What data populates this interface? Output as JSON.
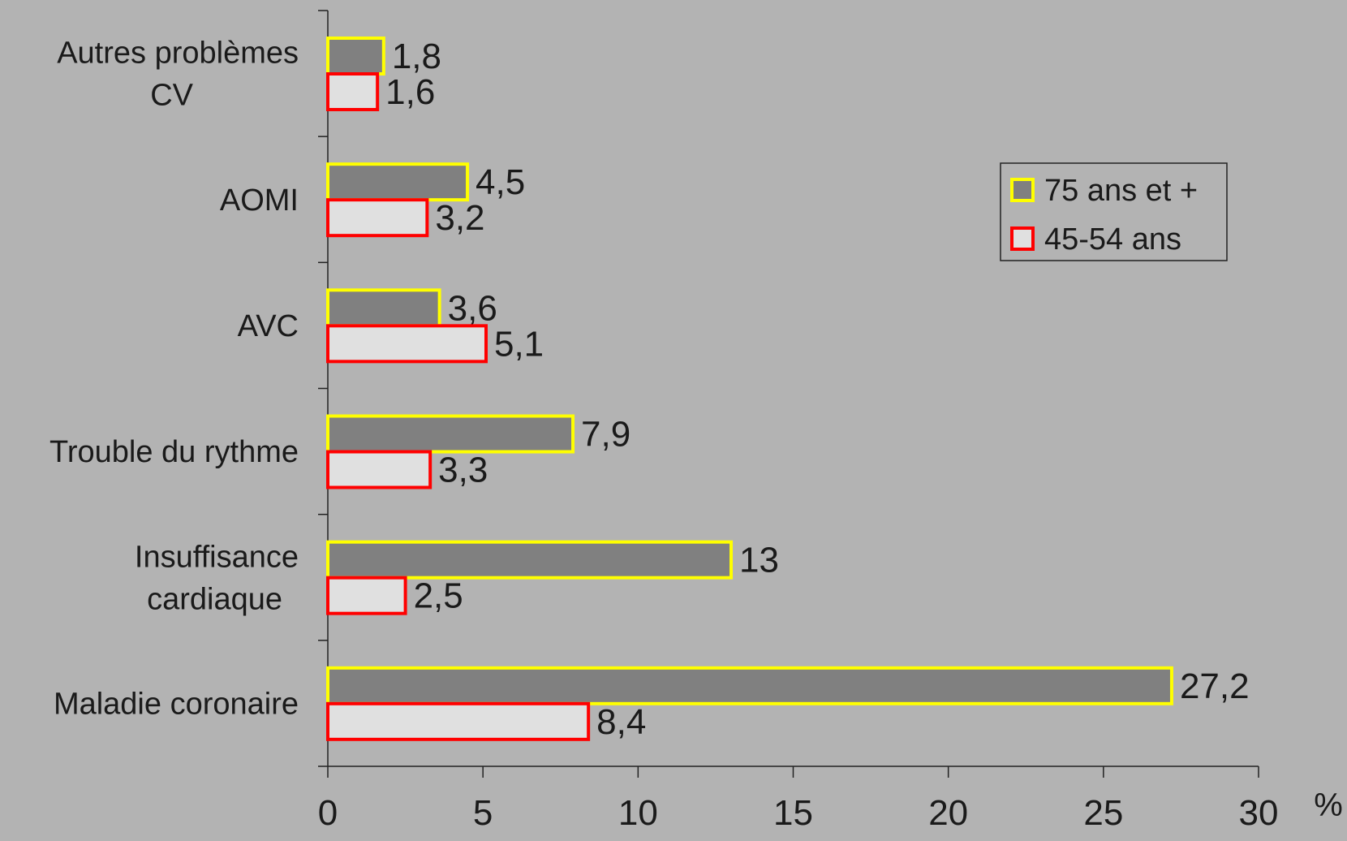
{
  "chart_data": {
    "type": "barh",
    "categories": [
      "Autres problèmes\nCV",
      "AOMI",
      "AVC",
      "Trouble du rythme",
      "Insuffisance\ncardiaque",
      "Maladie coronaire"
    ],
    "series": [
      {
        "name": "75 ans et +",
        "color": "#808080",
        "edgecolor": "#ffff00",
        "values": [
          1.8,
          4.5,
          3.6,
          7.9,
          13,
          27.2
        ],
        "value_labels": [
          "1,8",
          "4,5",
          "3,6",
          "7,9",
          "13",
          "27,2"
        ]
      },
      {
        "name": "45-54 ans",
        "color": "#e0e0e0",
        "edgecolor": "#ff0000",
        "values": [
          1.6,
          3.2,
          5.1,
          3.3,
          2.5,
          8.4
        ],
        "value_labels": [
          "1,6",
          "3,2",
          "5,1",
          "3,3",
          "2,5",
          "8,4"
        ]
      }
    ],
    "xlabel": "%",
    "xlim": [
      0,
      30
    ],
    "xticks": [
      0,
      5,
      10,
      15,
      20,
      25,
      30
    ],
    "legend": "upper right"
  }
}
